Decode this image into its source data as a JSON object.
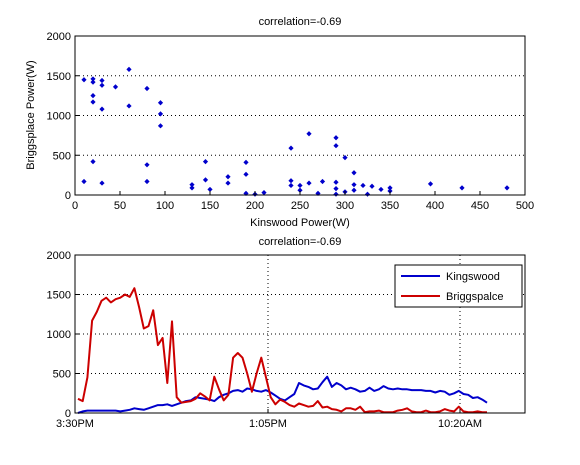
{
  "chart_data": [
    {
      "type": "scatter",
      "title": "correlation=-0.69",
      "xlabel": "Kinswood Power(W)",
      "ylabel": "Briggsplace Power(W)",
      "xlim": [
        0,
        500
      ],
      "ylim": [
        0,
        2000
      ],
      "xticks": [
        0,
        50,
        100,
        150,
        200,
        250,
        300,
        350,
        400,
        450,
        500
      ],
      "yticks": [
        0,
        500,
        1000,
        1500,
        2000
      ],
      "grid": "dotted",
      "marker": "diamond",
      "color": "#0000cc",
      "points": [
        [
          10,
          1450
        ],
        [
          20,
          1460
        ],
        [
          20,
          1420
        ],
        [
          20,
          1250
        ],
        [
          20,
          1170
        ],
        [
          30,
          1440
        ],
        [
          30,
          1380
        ],
        [
          30,
          1080
        ],
        [
          45,
          1360
        ],
        [
          60,
          1580
        ],
        [
          60,
          1120
        ],
        [
          80,
          1340
        ],
        [
          95,
          1160
        ],
        [
          95,
          1020
        ],
        [
          95,
          870
        ],
        [
          10,
          170
        ],
        [
          20,
          420
        ],
        [
          30,
          150
        ],
        [
          80,
          380
        ],
        [
          80,
          170
        ],
        [
          130,
          130
        ],
        [
          130,
          90
        ],
        [
          145,
          420
        ],
        [
          145,
          190
        ],
        [
          150,
          70
        ],
        [
          170,
          230
        ],
        [
          170,
          150
        ],
        [
          190,
          410
        ],
        [
          190,
          260
        ],
        [
          210,
          30
        ],
        [
          190,
          20
        ],
        [
          200,
          10
        ],
        [
          240,
          590
        ],
        [
          240,
          180
        ],
        [
          240,
          120
        ],
        [
          250,
          120
        ],
        [
          250,
          60
        ],
        [
          260,
          770
        ],
        [
          260,
          150
        ],
        [
          270,
          20
        ],
        [
          275,
          170
        ],
        [
          290,
          720
        ],
        [
          290,
          620
        ],
        [
          290,
          160
        ],
        [
          290,
          80
        ],
        [
          290,
          10
        ],
        [
          300,
          470
        ],
        [
          300,
          40
        ],
        [
          310,
          280
        ],
        [
          310,
          130
        ],
        [
          310,
          60
        ],
        [
          320,
          120
        ],
        [
          325,
          10
        ],
        [
          330,
          110
        ],
        [
          340,
          70
        ],
        [
          350,
          90
        ],
        [
          350,
          50
        ],
        [
          395,
          140
        ],
        [
          430,
          90
        ],
        [
          480,
          90
        ]
      ]
    },
    {
      "type": "line",
      "title": "correlation=-0.69",
      "xtick_labels": [
        "3:30PM",
        "1:05PM",
        "10:20AM"
      ],
      "ylim": [
        0,
        2000
      ],
      "yticks": [
        0,
        500,
        1000,
        1500,
        2000
      ],
      "grid": "dotted",
      "legend": "top-right",
      "series": [
        {
          "name": "Kingswood",
          "color": "#0000cc",
          "values": [
            0,
            20,
            30,
            30,
            30,
            30,
            30,
            30,
            30,
            20,
            30,
            40,
            60,
            50,
            40,
            60,
            80,
            100,
            100,
            110,
            90,
            110,
            130,
            150,
            160,
            200,
            190,
            180,
            170,
            150,
            200,
            230,
            250,
            280,
            290,
            270,
            310,
            300,
            280,
            270,
            290,
            260,
            220,
            180,
            160,
            200,
            240,
            380,
            350,
            330,
            300,
            310,
            390,
            460,
            330,
            380,
            350,
            300,
            320,
            300,
            270,
            280,
            320,
            280,
            300,
            340,
            310,
            300,
            310,
            300,
            300,
            290,
            290,
            290,
            280,
            280,
            260,
            280,
            270,
            230,
            250,
            280,
            240,
            230,
            190,
            200,
            170,
            130
          ]
        },
        {
          "name": "Briggspalce",
          "color": "#cc0000",
          "values": [
            180,
            150,
            450,
            1170,
            1280,
            1420,
            1460,
            1400,
            1440,
            1460,
            1500,
            1470,
            1580,
            1340,
            1070,
            1100,
            1300,
            860,
            950,
            380,
            1160,
            200,
            130,
            140,
            150,
            180,
            250,
            210,
            160,
            460,
            300,
            160,
            230,
            700,
            760,
            700,
            500,
            270,
            500,
            700,
            450,
            200,
            110,
            170,
            140,
            100,
            80,
            120,
            100,
            80,
            90,
            150,
            70,
            80,
            50,
            40,
            20,
            60,
            60,
            40,
            80,
            10,
            20,
            20,
            30,
            10,
            10,
            10,
            30,
            40,
            60,
            20,
            10,
            10,
            30,
            10,
            10,
            20,
            50,
            30,
            20,
            80,
            20,
            10,
            10,
            20,
            10,
            10
          ]
        }
      ]
    }
  ]
}
